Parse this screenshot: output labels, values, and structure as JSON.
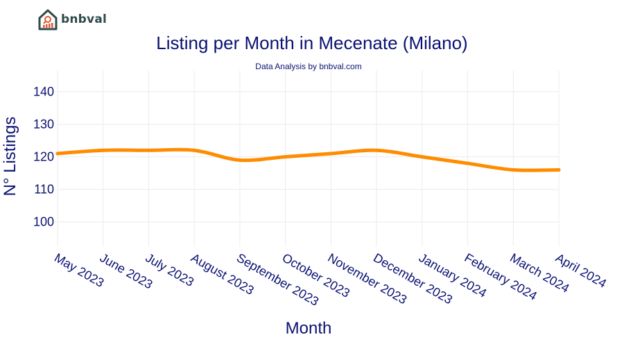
{
  "brand": {
    "name": "bnbval",
    "colors": {
      "logo_dark": "#2f4a4a",
      "logo_accent": "#e4572e"
    }
  },
  "colors": {
    "text": "#0a1172",
    "line": "#ff8c00",
    "grid": "#ececec"
  },
  "chart_data": {
    "type": "line",
    "title": "Listing per Month in Mecenate (Milano)",
    "subtitle": "Data Analysis by bnbval.com",
    "xlabel": "Month",
    "ylabel": "N° Listings",
    "categories": [
      "May 2023",
      "June 2023",
      "July 2023",
      "August 2023",
      "September 2023",
      "October 2023",
      "November 2023",
      "December 2023",
      "January 2024",
      "February 2024",
      "March 2024",
      "April 2024"
    ],
    "series": [
      {
        "name": "Listings",
        "values": [
          121,
          122,
          122,
          122,
          119,
          120,
          121,
          122,
          120,
          118,
          116,
          116
        ]
      }
    ],
    "yticks": [
      100,
      110,
      120,
      130,
      140
    ],
    "ylim": [
      92.5,
      146.5
    ],
    "grid": true,
    "legend": "none"
  }
}
